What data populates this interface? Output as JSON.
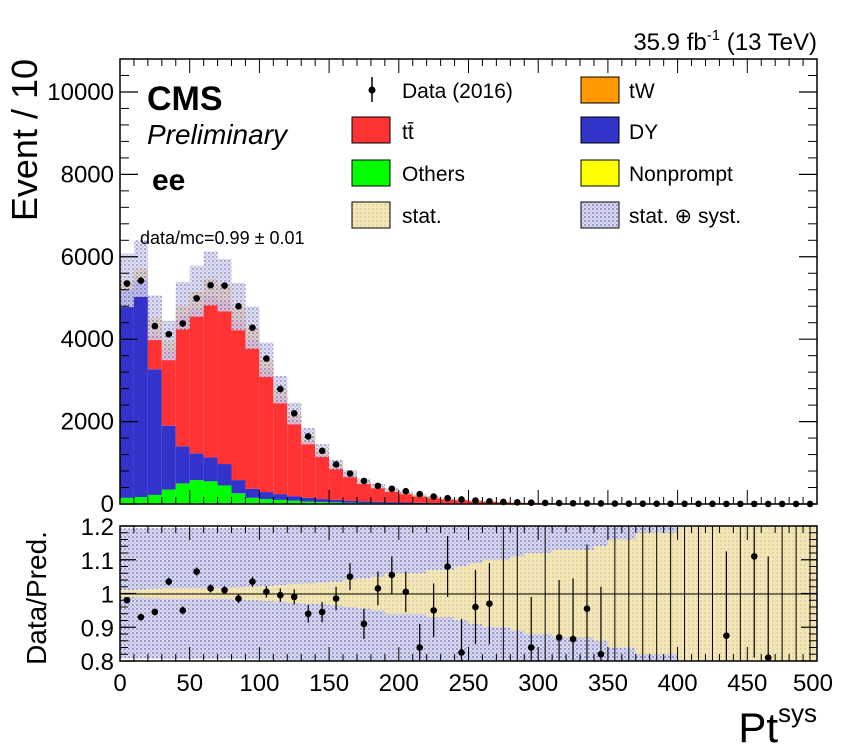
{
  "header": {
    "lumi_left": "35.9 fb",
    "lumi_sup": "-1",
    "lumi_right": " (13 TeV)"
  },
  "labels": {
    "cms": "CMS",
    "preliminary": "Preliminary",
    "channel": "ee",
    "ratio_text": "data/mc=0.99 ± 0.01"
  },
  "legend": {
    "data": "Data (2016)",
    "ttbar": "tt̄",
    "others": "Others",
    "stat": "stat.",
    "tw": "tW",
    "dy": "DY",
    "nonprompt": "Nonprompt",
    "statsyst": "stat. ⊕ syst."
  },
  "colors": {
    "ttbar": "#ff3333",
    "tw": "#ff9900",
    "dy": "#3333cc",
    "others": "#00ff00",
    "nonprompt": "#ffff00",
    "stat_band": "#f0e0a0",
    "syst_band": "#9a9ad6"
  },
  "chart_data": [
    {
      "type": "bar",
      "subtype": "stacked-histogram",
      "ylabel": "Event / 10",
      "ylim": [
        0,
        10800
      ],
      "xlim": [
        0,
        500
      ],
      "yticks": [
        "0",
        "2000",
        "4000",
        "6000",
        "8000",
        "10000"
      ],
      "bin_edges_step": 10,
      "series": [
        {
          "name": "Others",
          "values": [
            150,
            170,
            220,
            350,
            500,
            580,
            550,
            450,
            260,
            150,
            120,
            100,
            80,
            60,
            50,
            40,
            30,
            25,
            20,
            15,
            12,
            10,
            8,
            6,
            5,
            4,
            3,
            3,
            2,
            2,
            2,
            1,
            1,
            1,
            1,
            1,
            1,
            1,
            1,
            1,
            1,
            1,
            1,
            1,
            1,
            1,
            1,
            1,
            1,
            1
          ]
        },
        {
          "name": "DY",
          "values": [
            5050,
            5260,
            3050,
            1550,
            900,
            650,
            580,
            520,
            320,
            220,
            170,
            140,
            110,
            90,
            70,
            60,
            50,
            40,
            35,
            30,
            25,
            20,
            15,
            12,
            10,
            8,
            7,
            6,
            5,
            4,
            3,
            3,
            2,
            2,
            2,
            2,
            1,
            1,
            1,
            1,
            1,
            1,
            1,
            1,
            1,
            1,
            1,
            1,
            1,
            1
          ]
        },
        {
          "name": "tt̄",
          "values": [
            10,
            10,
            840,
            1850,
            3150,
            3520,
            3920,
            3950,
            3850,
            3600,
            2980,
            2350,
            1860,
            1380,
            1080,
            780,
            590,
            430,
            330,
            250,
            200,
            150,
            115,
            88,
            72,
            55,
            40,
            30,
            22,
            17,
            14,
            12,
            10,
            8,
            7,
            6,
            5,
            4,
            3,
            3,
            2,
            2,
            2,
            2,
            2,
            2,
            2,
            2,
            2,
            2
          ]
        },
        {
          "name": "tW",
          "values": [
            200,
            250,
            390,
            200,
            250,
            400,
            410,
            380,
            350,
            300,
            220,
            180,
            140,
            110,
            90,
            70,
            60,
            50,
            45,
            40,
            35,
            30,
            25,
            20,
            15,
            12,
            10,
            8,
            7,
            6,
            5,
            4,
            3,
            3,
            2,
            2,
            2,
            2,
            2,
            2,
            1,
            1,
            1,
            1,
            1,
            1,
            1,
            1,
            1,
            1
          ]
        },
        {
          "name": "Nonprompt",
          "values": [
            20,
            20,
            20,
            15,
            15,
            15,
            15,
            10,
            10,
            10,
            10,
            5,
            5,
            5,
            5,
            5,
            5,
            5,
            5,
            5,
            3,
            3,
            3,
            3,
            3,
            2,
            2,
            2,
            2,
            2,
            2,
            1,
            1,
            1,
            1,
            1,
            1,
            1,
            1,
            1,
            1,
            1,
            1,
            1,
            1,
            1,
            1,
            1,
            1,
            1
          ]
        },
        {
          "name": "Data (2016)",
          "values": [
            5350,
            5420,
            4320,
            4120,
            4380,
            4990,
            5310,
            5300,
            4800,
            4280,
            3530,
            2790,
            2200,
            1640,
            1290,
            960,
            740,
            560,
            440,
            370,
            310,
            240,
            180,
            140,
            110,
            85,
            65,
            50,
            40,
            33,
            27,
            22,
            18,
            15,
            13,
            11,
            9,
            8,
            7,
            6,
            5,
            4,
            4,
            3,
            3,
            3,
            2,
            2,
            2,
            2
          ]
        }
      ],
      "syst_rel_err": 0.12
    },
    {
      "type": "scatter",
      "subtype": "ratio",
      "xlabel": "Pt",
      "xlabel_sup": "sys",
      "ylabel": "Data/Pred.",
      "xlim": [
        0,
        500
      ],
      "ylim": [
        0.8,
        1.2
      ],
      "yticks": [
        "0.8",
        "0.9",
        "1",
        "1.1",
        "1.2"
      ],
      "xticks": [
        "0",
        "50",
        "100",
        "150",
        "200",
        "250",
        "300",
        "350",
        "400",
        "450",
        "500"
      ],
      "x": [
        5,
        15,
        25,
        35,
        45,
        55,
        65,
        75,
        85,
        95,
        105,
        115,
        125,
        135,
        145,
        155,
        165,
        175,
        185,
        195,
        205,
        215,
        225,
        235,
        245,
        255,
        265,
        275,
        285,
        295,
        305,
        315,
        325,
        335,
        345,
        355,
        365,
        375,
        385,
        395,
        405,
        415,
        425,
        435,
        445,
        455,
        465,
        475,
        485,
        495
      ],
      "values": [
        0.98,
        0.93,
        0.945,
        1.035,
        0.95,
        1.065,
        1.015,
        1.01,
        0.985,
        1.035,
        1.005,
        0.995,
        0.99,
        0.94,
        0.945,
        0.985,
        1.05,
        0.91,
        1.015,
        1.055,
        1.005,
        0.84,
        0.95,
        1.08,
        0.825,
        0.96,
        0.97,
        null,
        null,
        0.84,
        null,
        0.87,
        0.865,
        0.955,
        0.82,
        null,
        null,
        null,
        null,
        null,
        null,
        null,
        null,
        0.875,
        null,
        1.11,
        0.81,
        null,
        null,
        null
      ],
      "errors": [
        0.006,
        0.007,
        0.01,
        0.011,
        0.012,
        0.012,
        0.012,
        0.012,
        0.014,
        0.015,
        0.017,
        0.02,
        0.022,
        0.026,
        0.03,
        0.035,
        0.04,
        0.045,
        0.05,
        0.055,
        0.06,
        0.07,
        0.08,
        0.09,
        0.1,
        0.11,
        0.12,
        0.13,
        0.14,
        0.15,
        0.16,
        0.17,
        0.18,
        0.19,
        0.2,
        0.2,
        0.2,
        0.2,
        0.2,
        0.2,
        0.2,
        0.2,
        0.2,
        0.25,
        0.3,
        0.3,
        0.3,
        0.3,
        0.3,
        0.3
      ],
      "stat_band": [
        0.01,
        0.012,
        0.014,
        0.016,
        0.016,
        0.016,
        0.016,
        0.016,
        0.018,
        0.02,
        0.022,
        0.025,
        0.028,
        0.03,
        0.032,
        0.035,
        0.04,
        0.045,
        0.05,
        0.06,
        0.06,
        0.06,
        0.07,
        0.07,
        0.08,
        0.09,
        0.1,
        0.1,
        0.11,
        0.12,
        0.12,
        0.13,
        0.13,
        0.13,
        0.14,
        0.16,
        0.16,
        0.18,
        0.18,
        0.18,
        0.2,
        0.2,
        0.2,
        0.2,
        0.2,
        0.2,
        0.2,
        0.2,
        0.2,
        0.2
      ]
    }
  ]
}
